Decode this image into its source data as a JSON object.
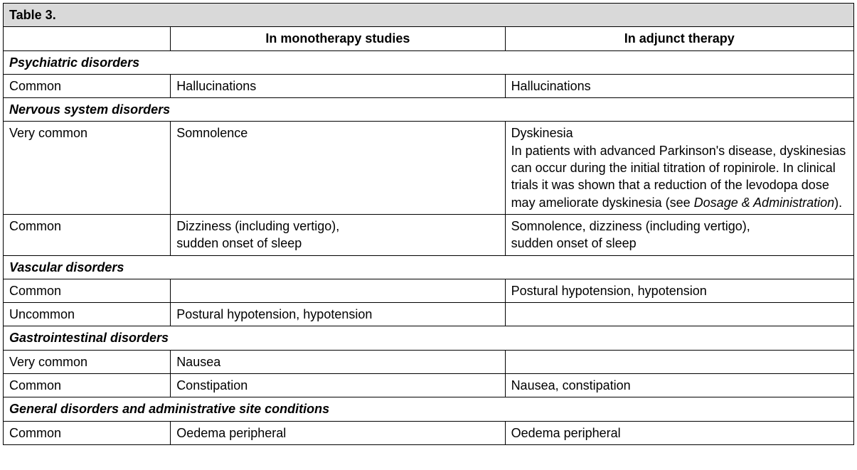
{
  "title": "Table 3.",
  "columns": {
    "freq": "",
    "mono": "In monotherapy studies",
    "adj": "In adjunct therapy"
  },
  "sections": [
    {
      "name": "Psychiatric disorders",
      "rows": [
        {
          "freq": "Common",
          "mono": "Hallucinations",
          "adj": "Hallucinations"
        }
      ]
    },
    {
      "name": "Nervous system disorders",
      "rows": [
        {
          "freq": "Very common",
          "mono": "Somnolence",
          "adj_line1": "Dyskinesia",
          "adj_line2a": "In patients with advanced Parkinson's disease, dyskinesias can occur during the initial titration of ropinirole. In clinical trials it was shown that a reduction of the levodopa dose may ameliorate dyskinesia (see ",
          "adj_line2b": "Dosage & Administration",
          "adj_line2c": ")."
        },
        {
          "freq": "Common",
          "mono_l1": "Dizziness (including vertigo),",
          "mono_l2": "sudden onset of sleep",
          "adj_l1": "Somnolence, dizziness (including vertigo),",
          "adj_l2": "sudden onset of sleep"
        }
      ]
    },
    {
      "name": "Vascular disorders",
      "rows": [
        {
          "freq": "Common",
          "mono": "",
          "adj": "Postural hypotension, hypotension"
        },
        {
          "freq": "Uncommon",
          "mono": "Postural hypotension, hypotension",
          "adj": ""
        }
      ]
    },
    {
      "name": "Gastrointestinal disorders",
      "rows": [
        {
          "freq": "Very common",
          "mono": "Nausea",
          "adj": ""
        },
        {
          "freq": "Common",
          "mono": "Constipation",
          "adj": "Nausea, constipation"
        }
      ]
    },
    {
      "name": "General disorders and administrative site conditions",
      "rows": [
        {
          "freq": "Common",
          "mono": "Oedema peripheral",
          "adj": "Oedema peripheral"
        }
      ]
    }
  ]
}
